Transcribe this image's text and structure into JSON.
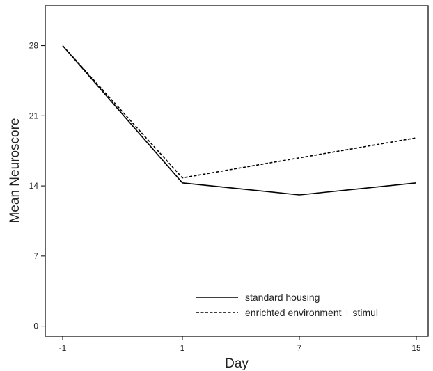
{
  "chart_data": {
    "type": "line",
    "xlabel": "Day",
    "ylabel": "Mean Neuroscore",
    "x_categories": [
      "-1",
      "1",
      "7",
      "15"
    ],
    "yticks": [
      0,
      7,
      14,
      21,
      28
    ],
    "ylim": [
      -1,
      32
    ],
    "grid": false,
    "legend_position": "bottom-right",
    "series": [
      {
        "name": "standard housing",
        "style": "solid",
        "color": "#000000",
        "values": [
          28,
          14.3,
          13.1,
          14.3
        ]
      },
      {
        "name": "enrichted environment + stimul",
        "style": "dashed",
        "color": "#000000",
        "values": [
          28,
          14.8,
          16.8,
          18.8
        ]
      }
    ]
  }
}
